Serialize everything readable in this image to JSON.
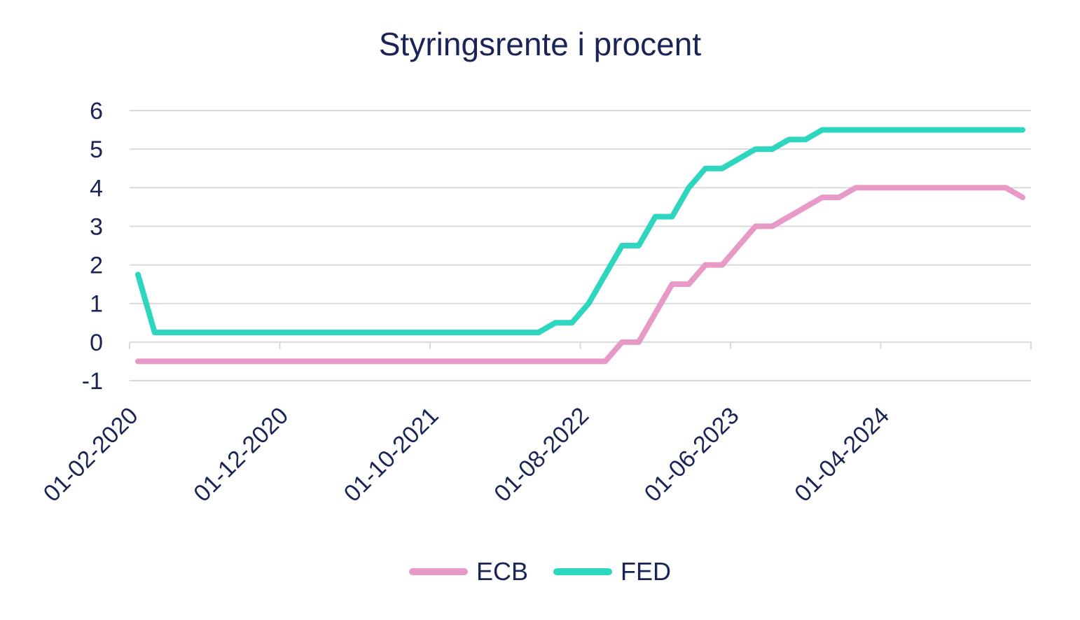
{
  "chart_data": {
    "type": "line",
    "title": "Styringsrente i procent",
    "ylim": [
      -1,
      6
    ],
    "yticks": [
      "-1",
      "0",
      "1",
      "2",
      "3",
      "4",
      "5",
      "6"
    ],
    "xtick_labels": [
      "01-02-2020",
      "01-12-2020",
      "01-10-2021",
      "01-08-2022",
      "01-06-2023",
      "01-04-2024"
    ],
    "x_range": [
      "2020-02",
      "2024-07"
    ],
    "grid": "horizontal",
    "legend_position": "bottom",
    "series": [
      {
        "name": "ECB",
        "color": "#e89ac7",
        "points": [
          [
            "2020-02",
            -0.5
          ],
          [
            "2022-06",
            -0.5
          ],
          [
            "2022-07",
            0
          ],
          [
            "2022-08",
            0
          ],
          [
            "2022-09",
            0.75
          ],
          [
            "2022-10",
            1.5
          ],
          [
            "2022-11",
            1.5
          ],
          [
            "2022-12",
            2
          ],
          [
            "2023-01",
            2
          ],
          [
            "2023-02",
            2.5
          ],
          [
            "2023-03",
            3
          ],
          [
            "2023-04",
            3
          ],
          [
            "2023-05",
            3.25
          ],
          [
            "2023-06",
            3.5
          ],
          [
            "2023-07",
            3.75
          ],
          [
            "2023-08",
            3.75
          ],
          [
            "2023-09",
            4
          ],
          [
            "2024-06",
            4
          ],
          [
            "2024-07",
            3.75
          ]
        ]
      },
      {
        "name": "FED",
        "color": "#2ed6bf",
        "points": [
          [
            "2020-02",
            1.75
          ],
          [
            "2020-03",
            0.25
          ],
          [
            "2022-02",
            0.25
          ],
          [
            "2022-03",
            0.5
          ],
          [
            "2022-04",
            0.5
          ],
          [
            "2022-05",
            1
          ],
          [
            "2022-06",
            1.75
          ],
          [
            "2022-07",
            2.5
          ],
          [
            "2022-08",
            2.5
          ],
          [
            "2022-09",
            3.25
          ],
          [
            "2022-10",
            3.25
          ],
          [
            "2022-11",
            4
          ],
          [
            "2022-12",
            4.5
          ],
          [
            "2023-01",
            4.5
          ],
          [
            "2023-02",
            4.75
          ],
          [
            "2023-03",
            5
          ],
          [
            "2023-04",
            5
          ],
          [
            "2023-05",
            5.25
          ],
          [
            "2023-06",
            5.25
          ],
          [
            "2023-07",
            5.5
          ],
          [
            "2024-07",
            5.5
          ]
        ]
      }
    ]
  }
}
